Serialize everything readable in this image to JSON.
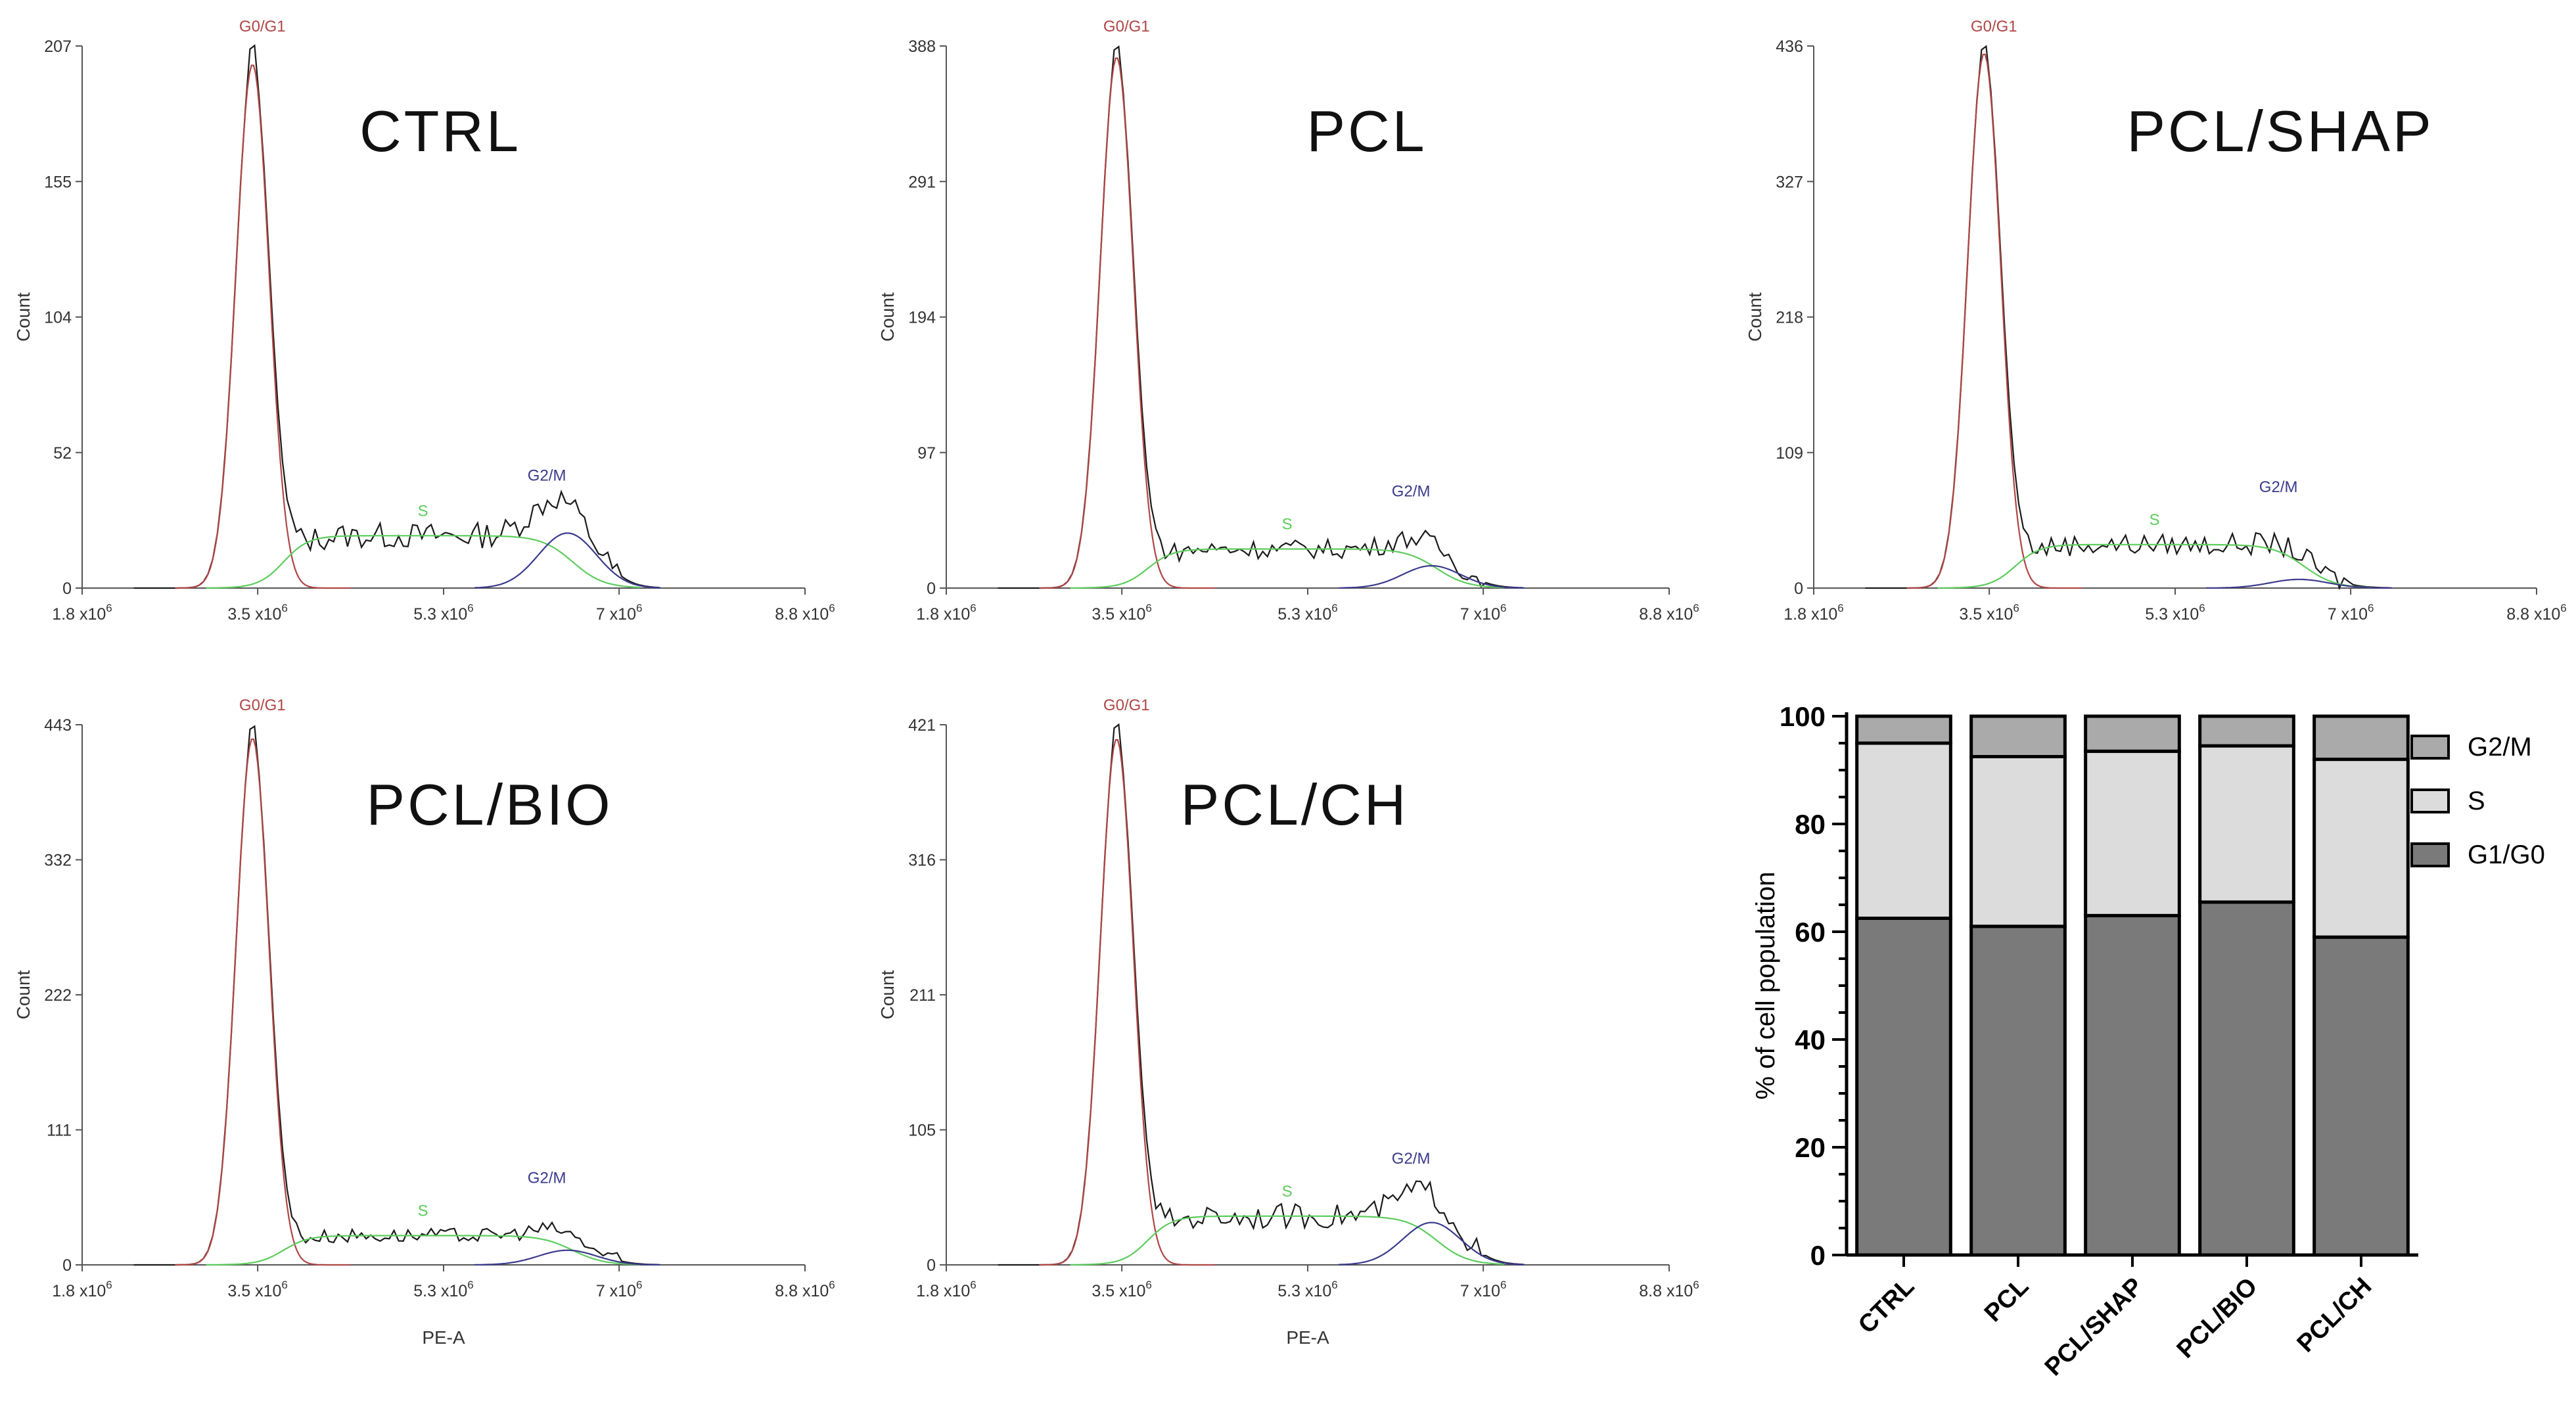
{
  "chart_data": [
    {
      "type": "histogram",
      "panel": "CTRL",
      "title": "CTRL",
      "xlabel": "",
      "ylabel": "Count",
      "x_ticks": [
        "1.8 x10",
        "3.5 x10",
        "5.3 x10",
        "7 x10",
        "8.8 x10"
      ],
      "x_tick_values": [
        1.8,
        3.5,
        5.3,
        7,
        8.8
      ],
      "x_tick_exponent": "6",
      "xlim": [
        1.8,
        8.8
      ],
      "y_ticks": [
        "0",
        "52",
        "104",
        "155",
        "207"
      ],
      "ylim": [
        0,
        207
      ],
      "phase_labels": {
        "g0g1": "G0/G1",
        "s": "S",
        "g2m": "G2/M"
      },
      "peaks": {
        "g0g1": 200,
        "s": 20,
        "g2m": 21
      },
      "raw_peak": 207
    },
    {
      "type": "histogram",
      "panel": "PCL",
      "title": "PCL",
      "xlabel": "",
      "ylabel": "Count",
      "x_ticks": [
        "1.8 x10",
        "3.5 x10",
        "5.3 x10",
        "7 x10",
        "8.8 x10"
      ],
      "x_tick_values": [
        1.8,
        3.5,
        5.3,
        7,
        8.8
      ],
      "x_tick_exponent": "6",
      "xlim": [
        1.8,
        8.8
      ],
      "y_ticks": [
        "0",
        "97",
        "194",
        "291",
        "388"
      ],
      "ylim": [
        0,
        388
      ],
      "phase_labels": {
        "g0g1": "G0/G1",
        "s": "S",
        "g2m": "G2/M"
      },
      "peaks": {
        "g0g1": 380,
        "s": 28,
        "g2m": 16
      },
      "raw_peak": 388
    },
    {
      "type": "histogram",
      "panel": "PCL/SHAP",
      "title": "PCL/SHAP",
      "xlabel": "",
      "ylabel": "Count",
      "x_ticks": [
        "1.8 x10",
        "3.5 x10",
        "5.3 x10",
        "7 x10",
        "8.8 x10"
      ],
      "x_tick_values": [
        1.8,
        3.5,
        5.3,
        7,
        8.8
      ],
      "x_tick_exponent": "6",
      "xlim": [
        1.8,
        8.8
      ],
      "y_ticks": [
        "0",
        "109",
        "218",
        "327",
        "436"
      ],
      "ylim": [
        0,
        436
      ],
      "phase_labels": {
        "g0g1": "G0/G1",
        "s": "S",
        "g2m": "G2/M"
      },
      "peaks": {
        "g0g1": 430,
        "s": 35,
        "g2m": 7
      },
      "raw_peak": 436
    },
    {
      "type": "histogram",
      "panel": "PCL/BIO",
      "title": "PCL/BIO",
      "xlabel": "PE-A",
      "ylabel": "Count",
      "x_ticks": [
        "1.8 x10",
        "3.5 x10",
        "5.3 x10",
        "7 x10",
        "8.8 x10"
      ],
      "x_tick_values": [
        1.8,
        3.5,
        5.3,
        7,
        8.8
      ],
      "x_tick_exponent": "6",
      "xlim": [
        1.8,
        8.8
      ],
      "y_ticks": [
        "0",
        "111",
        "222",
        "332",
        "443"
      ],
      "ylim": [
        0,
        443
      ],
      "phase_labels": {
        "g0g1": "G0/G1",
        "s": "S",
        "g2m": "G2/M"
      },
      "peaks": {
        "g0g1": 432,
        "s": 24,
        "g2m": 12
      },
      "raw_peak": 443
    },
    {
      "type": "histogram",
      "panel": "PCL/CH",
      "title": "PCL/CH",
      "xlabel": "PE-A",
      "ylabel": "Count",
      "x_ticks": [
        "1.8 x10",
        "3.5 x10",
        "5.3 x10",
        "7 x10",
        "8.8 x10"
      ],
      "x_tick_values": [
        1.8,
        3.5,
        5.3,
        7,
        8.8
      ],
      "x_tick_exponent": "6",
      "xlim": [
        1.8,
        8.8
      ],
      "y_ticks": [
        "0",
        "105",
        "211",
        "316",
        "421"
      ],
      "ylim": [
        0,
        421
      ],
      "phase_labels": {
        "g0g1": "G0/G1",
        "s": "S",
        "g2m": "G2/M"
      },
      "peaks": {
        "g0g1": 410,
        "s": 38,
        "g2m": 33
      },
      "raw_peak": 421
    },
    {
      "type": "bar",
      "stacked": true,
      "title": "",
      "xlabel": "",
      "ylabel": "% of cell population",
      "categories": [
        "CTRL",
        "PCL",
        "PCL/SHAP",
        "PCL/BIO",
        "PCL/CH"
      ],
      "ylim": [
        0,
        100
      ],
      "y_ticks": [
        0,
        20,
        40,
        60,
        80,
        100
      ],
      "legend_position": "right",
      "series": [
        {
          "name": "G1/G0",
          "color": "#7a7a7a",
          "values": [
            62.5,
            61,
            63,
            65.5,
            59
          ]
        },
        {
          "name": "S",
          "color": "#dcdcdc",
          "values": [
            32.5,
            31.5,
            30.5,
            29,
            33
          ]
        },
        {
          "name": "G2/M",
          "color": "#aaaaaa",
          "values": [
            5,
            7.5,
            6.5,
            5.5,
            8
          ]
        }
      ]
    }
  ],
  "colors": {
    "raw": "#1a1a1a",
    "g0g1": "#b04545",
    "s": "#5ccc5c",
    "g2m": "#3a3a8c",
    "axis": "#555555"
  }
}
